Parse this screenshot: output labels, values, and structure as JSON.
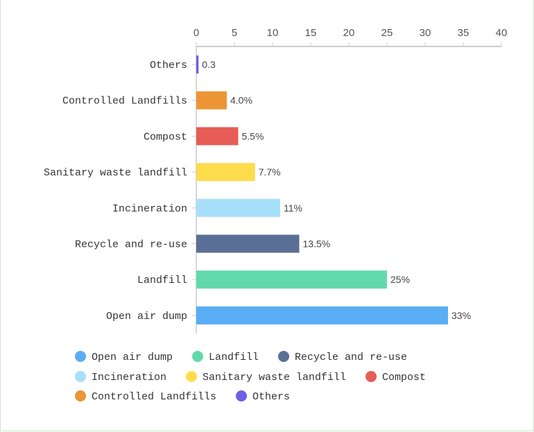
{
  "chart_data": {
    "type": "bar",
    "orientation": "horizontal",
    "categories": [
      "Open air dump",
      "Landfill",
      "Recycle and re-use",
      "Incineration",
      "Sanitary waste landfill",
      "Compost",
      "Controlled Landfills",
      "Others"
    ],
    "values": [
      33,
      25,
      13.5,
      11,
      7.7,
      5.5,
      4.0,
      0.3
    ],
    "data_labels": [
      "33%",
      "25%",
      "13.5%",
      "11%",
      "7.7%",
      "5.5%",
      "4.0%",
      "0.3"
    ],
    "colors": [
      "#5aaef5",
      "#62d9ad",
      "#5b6e96",
      "#a8dffa",
      "#ffdc4c",
      "#e75c57",
      "#ec9535",
      "#6e5fe6"
    ],
    "xlim": [
      0,
      40
    ],
    "xticks": [
      0,
      5,
      10,
      15,
      20,
      25,
      30,
      35,
      40
    ],
    "x_axis_position": "top",
    "grid": false,
    "legend": {
      "placement": "bottom",
      "entries": [
        "Open air dump",
        "Landfill",
        "Recycle and re-use",
        "Incineration",
        "Sanitary waste landfill",
        "Compost",
        "Controlled Landfills",
        "Others"
      ]
    }
  }
}
